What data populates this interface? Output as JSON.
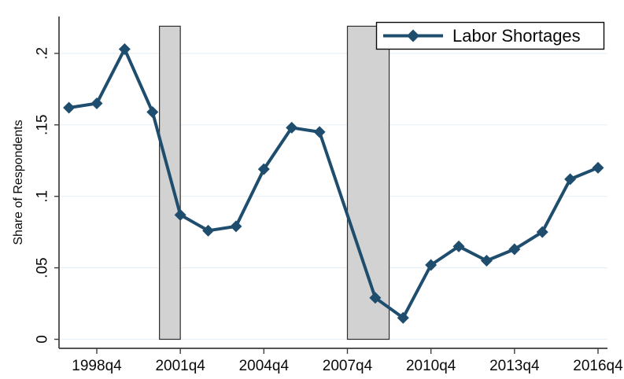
{
  "chart_data": {
    "type": "line",
    "ylabel": "Share of Respondents",
    "x_ticks": [
      "1998q4",
      "2001q4",
      "2004q4",
      "2007q4",
      "2010q4",
      "2013q4",
      "2016q4"
    ],
    "y_ticks": [
      "0",
      ".05",
      ".1",
      ".15",
      ".2"
    ],
    "y_tick_values": [
      0,
      0.05,
      0.1,
      0.15,
      0.2
    ],
    "ylim": [
      0,
      0.2255
    ],
    "grid": true,
    "legend_position": "top-right",
    "series": [
      {
        "name": "Labor Shortages",
        "color": "#1e4d6e",
        "marker": "diamond",
        "x": [
          "1997q4",
          "1998q4",
          "1999q4",
          "2000q4",
          "2001q4",
          "2002q4",
          "2003q4",
          "2004q4",
          "2005q4",
          "2006q4",
          "2008q4",
          "2009q4",
          "2010q4",
          "2011q4",
          "2012q4",
          "2013q4",
          "2014q4",
          "2015q4",
          "2016q4"
        ],
        "values": [
          0.162,
          0.165,
          0.203,
          0.159,
          0.087,
          0.076,
          0.079,
          0.119,
          0.148,
          0.145,
          0.029,
          0.015,
          0.052,
          0.065,
          0.055,
          0.063,
          0.075,
          0.112,
          0.12
        ]
      }
    ],
    "recession_bars": [
      {
        "start": "2001q1",
        "end": "2001q4",
        "top": 0.219
      },
      {
        "start": "2007q4",
        "end": "2009q2",
        "top": 0.219
      }
    ],
    "colors": {
      "line": "#1e4d6e",
      "grid": "#e9f0f6",
      "axis": "#3d3d3d",
      "text": "#0a0a0a",
      "recession_fill": "#d2d2d2",
      "recession_border": "#2e2e2e",
      "legend_border": "#0a0a0a",
      "background": "#ffffff"
    }
  },
  "legend": {
    "label": "Labor Shortages"
  }
}
